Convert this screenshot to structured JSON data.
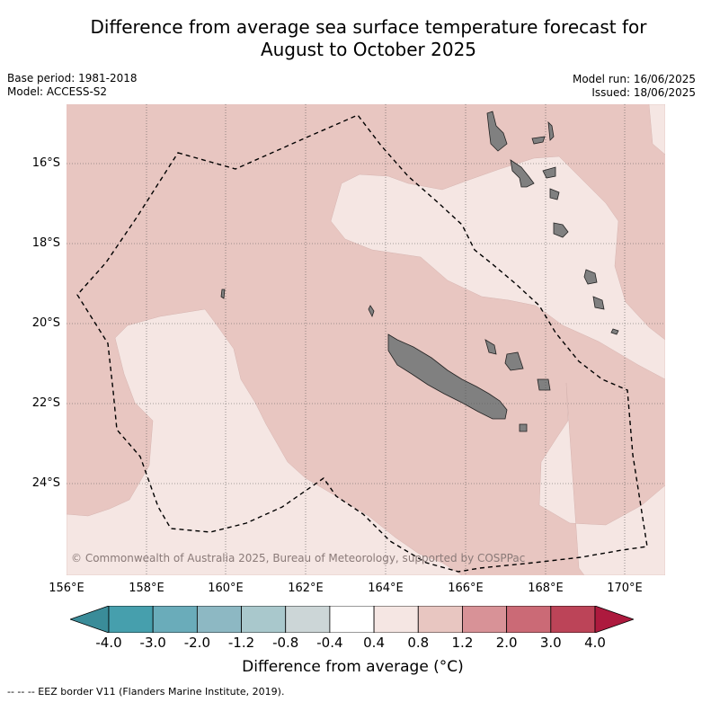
{
  "title_line1": "Difference from average sea surface temperature forecast for",
  "title_line2": "August to October 2025",
  "base_period": "Base period: 1981-2018",
  "model": "Model: ACCESS-S2",
  "model_run": "Model run: 16/06/2025",
  "issued": "Issued: 18/06/2025",
  "lat_labels": [
    "16°S",
    "18°S",
    "20°S",
    "22°S",
    "24°S"
  ],
  "lon_labels": [
    "156°E",
    "158°E",
    "160°E",
    "162°E",
    "164°E",
    "166°E",
    "168°E",
    "170°E"
  ],
  "copyright": "© Commonwealth of Australia 2025, Bureau of Meteorology, supported by COSPPac",
  "colorbar": {
    "ticks": [
      "-4.0",
      "-3.0",
      "-2.0",
      "-1.2",
      "-0.8",
      "-0.4",
      "0.4",
      "0.8",
      "1.2",
      "2.0",
      "3.0",
      "4.0"
    ],
    "colors": [
      "#3a8c99",
      "#469fad",
      "#6aacba",
      "#8db8c3",
      "#a9c8cc",
      "#ccd6d7",
      "#ffffff",
      "#f5e6e3",
      "#e8c6c1",
      "#d89297",
      "#cb6a76",
      "#bc4458",
      "#ad1a3e"
    ],
    "label": "Difference from average (°C)"
  },
  "map_colors": {
    "band_0_8_1_2": "#e8c6c1",
    "band_0_4_0_8": "#f5e6e3",
    "land": "#808080",
    "grid": "#555555"
  },
  "legend_footer": "-- -- -- EEZ border V11 (Flanders Marine Institute, 2019)."
}
